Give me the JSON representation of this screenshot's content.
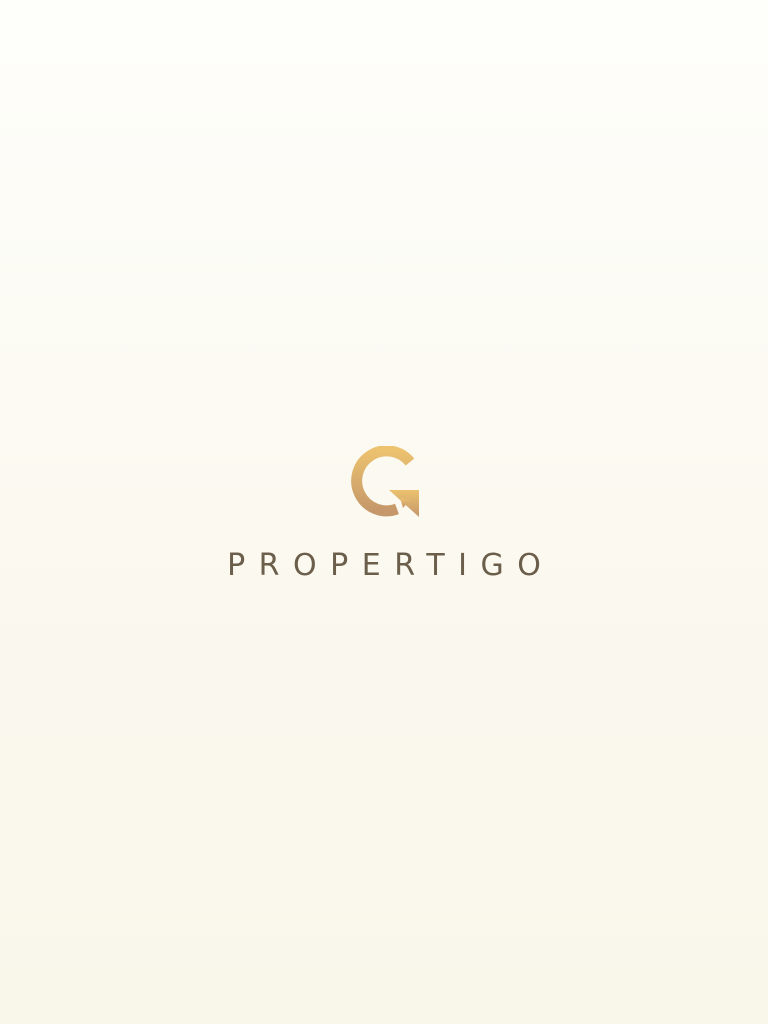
{
  "app": {
    "brand_name": "PROPERTIGO",
    "logo_icon": "propertigo-g-arrow-logo-icon"
  },
  "colors": {
    "background_top": "#fefefb",
    "background_bottom": "#f9f6ea",
    "logo_gradient_top": "#ecc26f",
    "logo_gradient_bottom": "#c5976a",
    "wordmark": "#6b5e4a"
  }
}
